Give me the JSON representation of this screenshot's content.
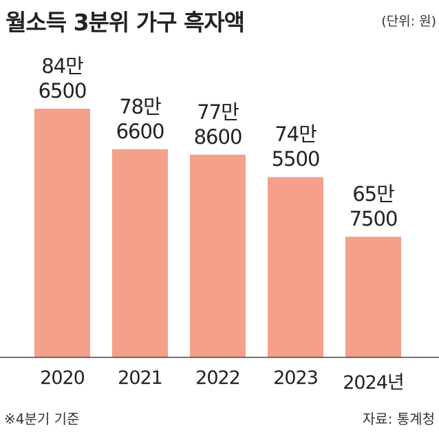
{
  "chart_data": {
    "type": "bar",
    "title": "월소득 3분위 가구 흑자액",
    "unit": "(단위: 원)",
    "categories": [
      "2020",
      "2021",
      "2022",
      "2023",
      "2024년"
    ],
    "values": [
      846500,
      786600,
      778600,
      745500,
      657500
    ],
    "value_labels": [
      "84만\n6500",
      "78만\n6600",
      "77만\n8600",
      "74만\n5500",
      "65만\n7500"
    ],
    "color": "#f4a08a",
    "ylim": [
      480000,
      880000
    ],
    "note": "※4분기 기준",
    "source": "자료: 통계청"
  }
}
